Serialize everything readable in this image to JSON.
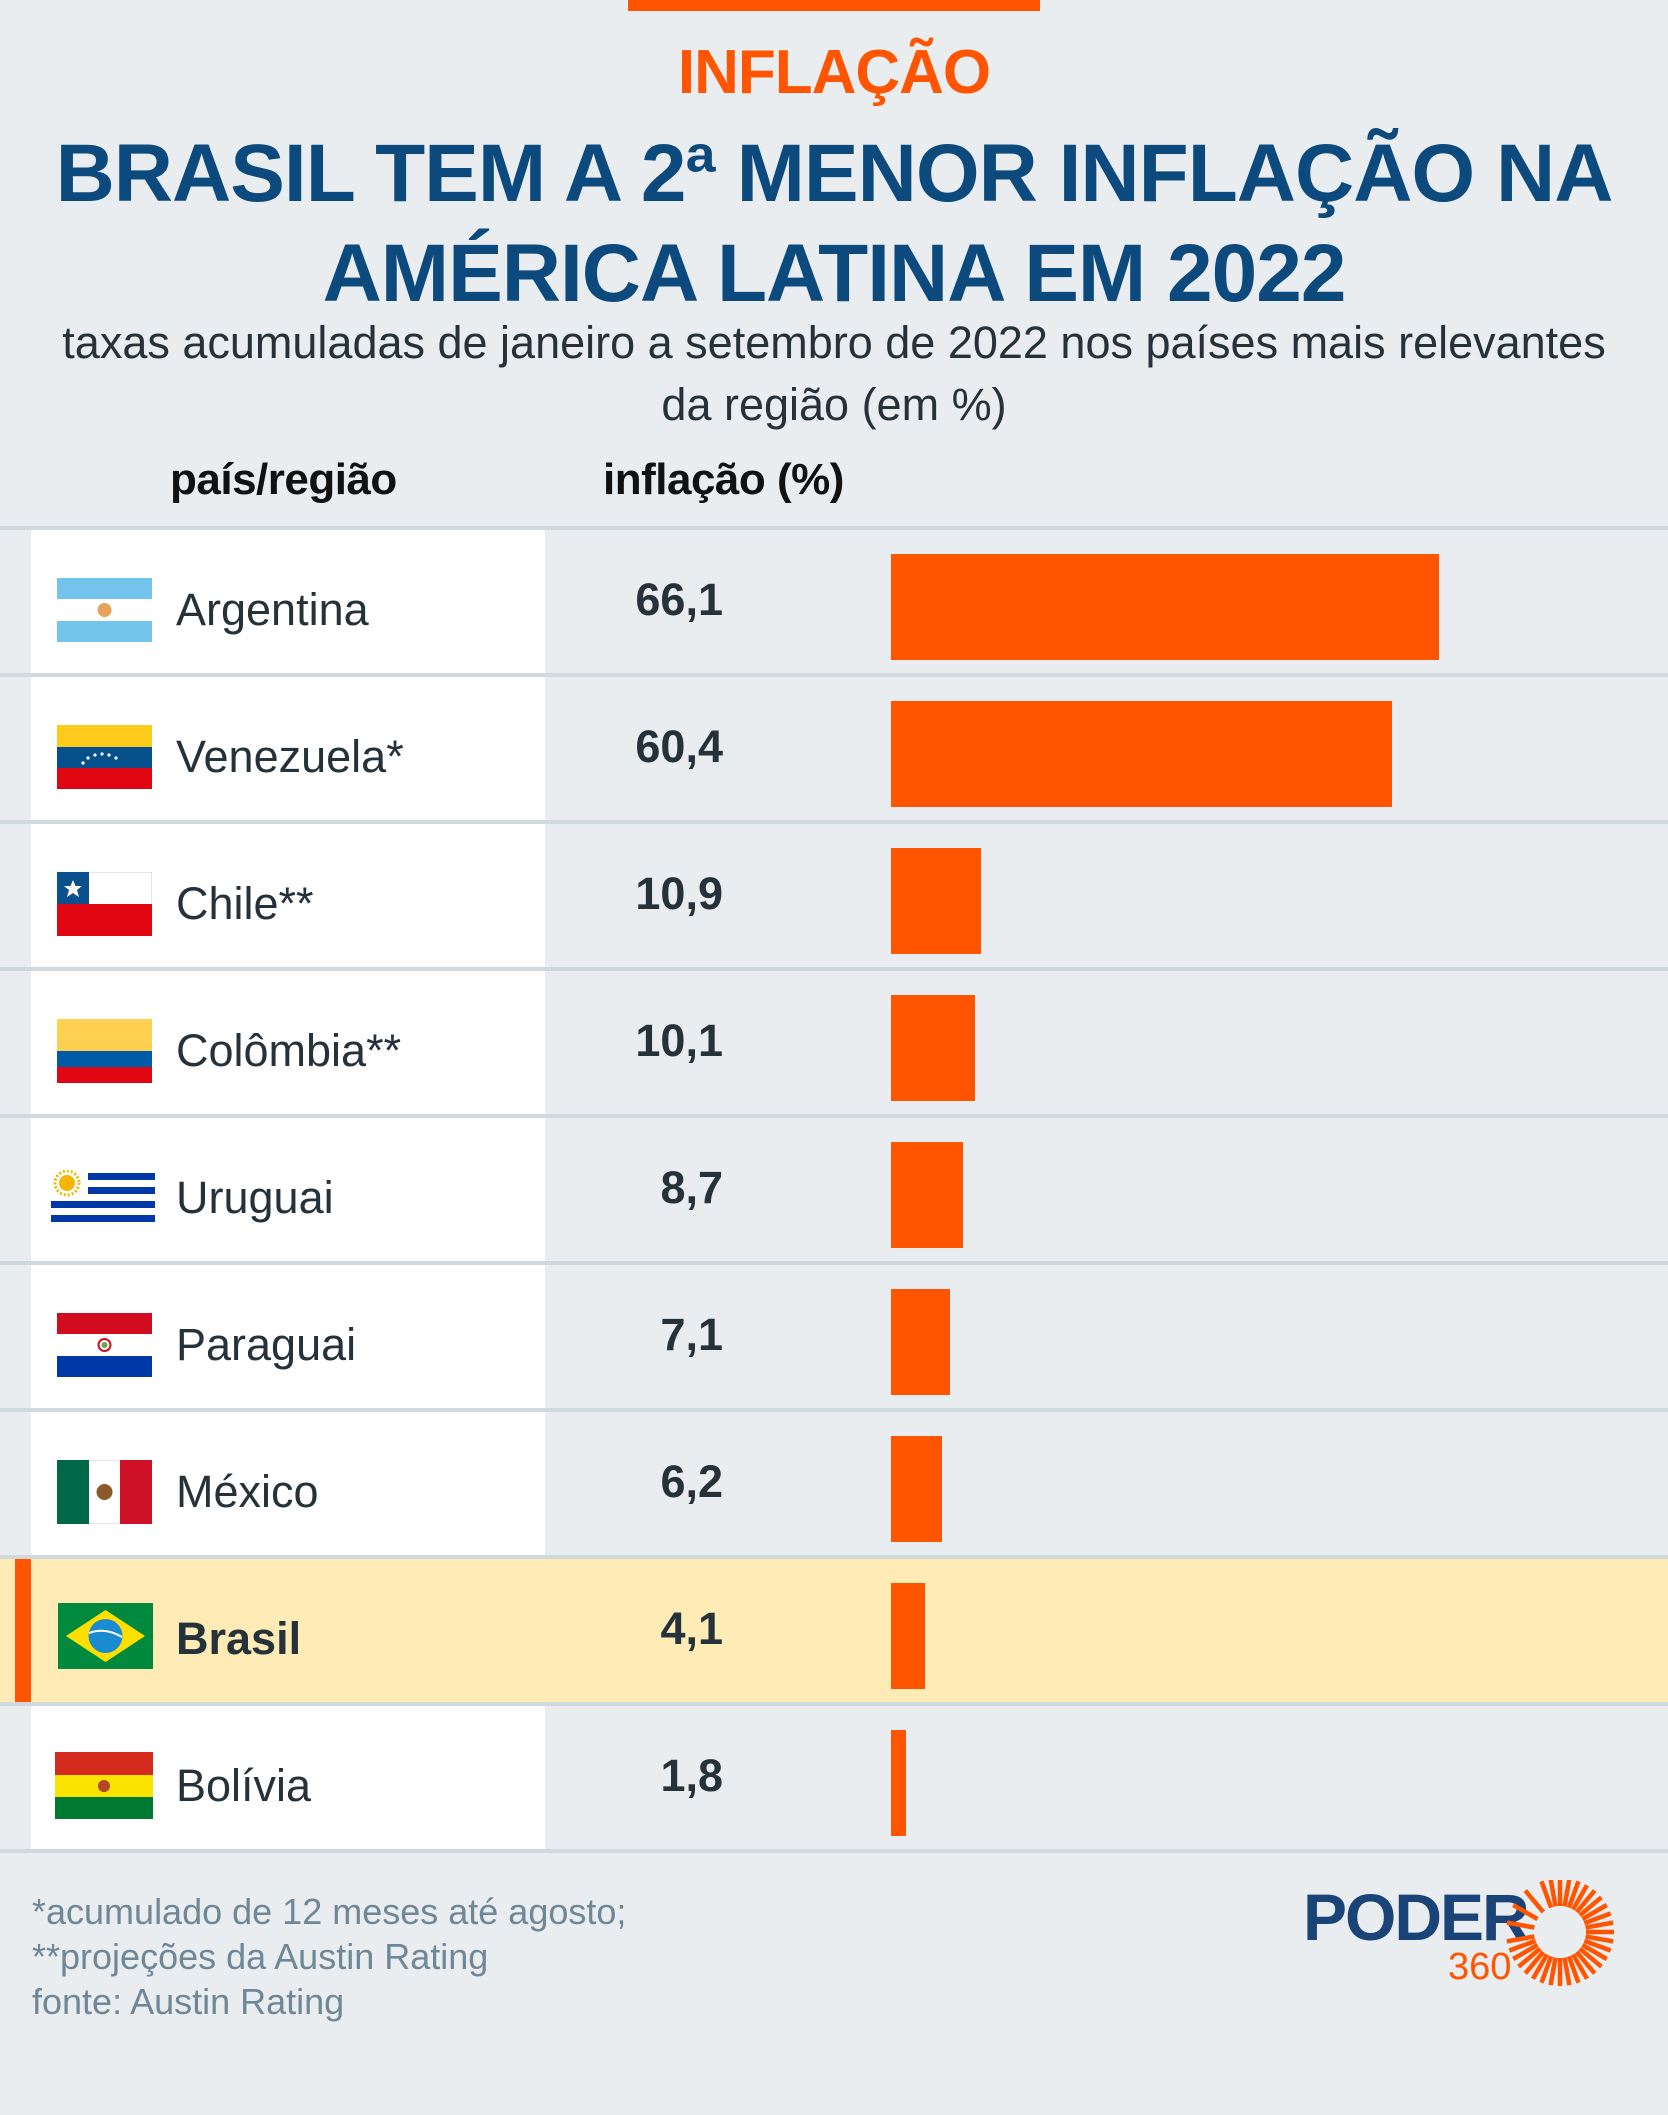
{
  "header": {
    "kicker": "INFLAÇÃO",
    "title": "BRASIL TEM A 2ª MENOR INFLAÇÃO NA AMÉRICA LATINA EM 2022",
    "subtitle": "taxas acumuladas de janeiro a setembro de 2022 nos países mais relevantes da região (em %)"
  },
  "columns": {
    "country": "país/região",
    "value": "inflação (%)"
  },
  "colors": {
    "accent": "#ff5500",
    "title": "#0c4a7e",
    "highlight_row": "#feebb6",
    "background": "#e9edf0"
  },
  "chart_data": {
    "type": "bar",
    "orientation": "horizontal",
    "title": "BRASIL TEM A 2ª MENOR INFLAÇÃO NA AMÉRICA LATINA EM 2022",
    "subtitle": "taxas acumuladas de janeiro a setembro de 2022 nos países mais relevantes da região (em %)",
    "xlabel": "inflação (%)",
    "ylabel": "país/região",
    "categories": [
      "Argentina",
      "Venezuela*",
      "Chile**",
      "Colômbia**",
      "Uruguai",
      "Paraguai",
      "México",
      "Brasil",
      "Bolívia"
    ],
    "values": [
      66.1,
      60.4,
      10.9,
      10.1,
      8.7,
      7.1,
      6.2,
      4.1,
      1.8
    ],
    "value_labels": [
      "66,1",
      "60,4",
      "10,9",
      "10,1",
      "8,7",
      "7,1",
      "6,2",
      "4,1",
      "1,8"
    ],
    "flags": [
      "argentina-flag",
      "venezuela-flag",
      "chile-flag",
      "colombia-flag",
      "uruguay-flag",
      "paraguay-flag",
      "mexico-flag",
      "brazil-flag",
      "bolivia-flag"
    ],
    "highlighted": "Brasil",
    "xlim": [
      0,
      66.1
    ],
    "grid": false,
    "legend": "none"
  },
  "footnotes": [
    "*acumulado de 12 meses até agosto;",
    "**projeções da Austin Rating",
    "fonte: Austin Rating"
  ],
  "logo": {
    "name": "PODER",
    "suffix": "360",
    "icon": "sun-icon"
  }
}
